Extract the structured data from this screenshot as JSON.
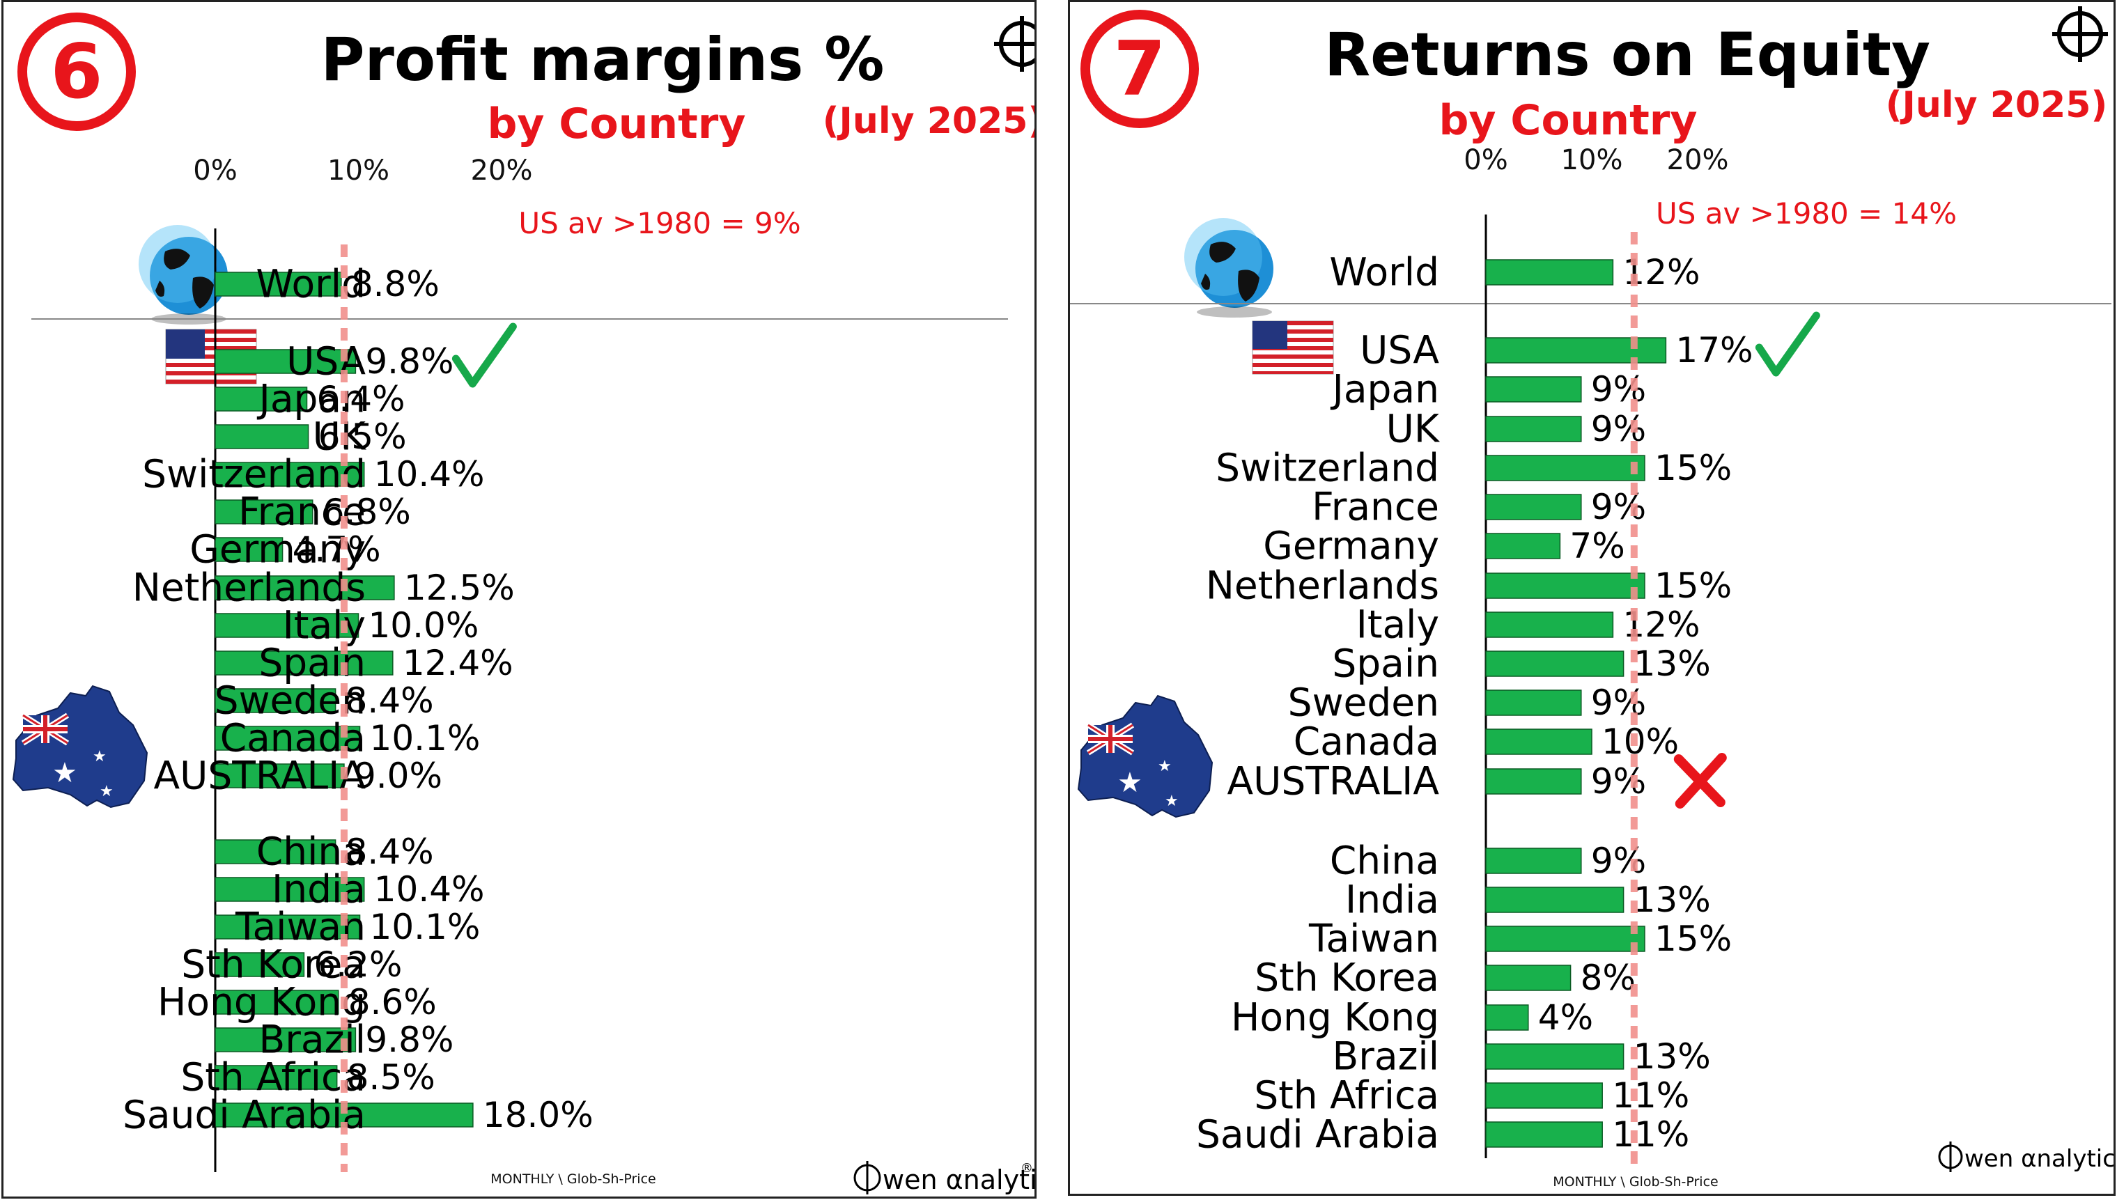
{
  "colors": {
    "bar": "#18b14c",
    "bar_stroke": "#0b5b24",
    "accent_red": "#e8151b",
    "refline": "#f1908c",
    "check": "#16a84a"
  },
  "panels": [
    {
      "badge_number": "6",
      "title": "Profit margins %",
      "subtitle": "by Country",
      "date": "(July 2025)",
      "refline_label": "US av >1980 = 9%",
      "footer_note": "MONTHLY \\ Glob-Sh-Price",
      "brand_name": "wen αnalytics",
      "brand_mark": "®",
      "chart_data": {
        "type": "bar",
        "orientation": "horizontal",
        "unit": "%",
        "xlim": [
          0,
          22
        ],
        "xticks": [
          "0%",
          "10%",
          "20%"
        ],
        "xtick_values": [
          0,
          10,
          20
        ],
        "reference_line": 9,
        "categories": [
          "World",
          "USA",
          "Japan",
          "UK",
          "Switzerland",
          "France",
          "Germany",
          "Netherlands",
          "Italy",
          "Spain",
          "Sweden",
          "Canada",
          "AUSTRALIA",
          "China",
          "India",
          "Taiwan",
          "Sth Korea",
          "Hong Kong",
          "Brazil",
          "Sth Africa",
          "Saudi Arabia"
        ],
        "values": [
          8.8,
          9.8,
          6.4,
          6.5,
          10.4,
          6.8,
          4.7,
          12.5,
          10.0,
          12.4,
          8.4,
          10.1,
          9.0,
          8.4,
          10.4,
          10.1,
          6.2,
          8.6,
          9.8,
          8.5,
          18.0
        ],
        "value_labels": [
          "8.8%",
          "9.8%",
          "6.4%",
          "6.5%",
          "10.4%",
          "6.8%",
          "4.7%",
          "12.5%",
          "10.0%",
          "12.4%",
          "8.4%",
          "10.1%",
          "9.0%",
          "8.4%",
          "10.4%",
          "10.1%",
          "6.2%",
          "8.6%",
          "9.8%",
          "8.5%",
          "18.0%"
        ],
        "marks": {
          "USA": "check"
        }
      }
    },
    {
      "badge_number": "7",
      "title": "Returns on Equity",
      "subtitle": "by Country",
      "date": "(July 2025)",
      "refline_label": "US av >1980 = 14%",
      "footer_note": "MONTHLY \\ Glob-Sh-Price",
      "brand_name": "wen αnalytics",
      "brand_mark": "",
      "chart_data": {
        "type": "bar",
        "orientation": "horizontal",
        "unit": "%",
        "xlim": [
          0,
          25
        ],
        "xticks": [
          "0%",
          "10%",
          "20%"
        ],
        "xtick_values": [
          0,
          10,
          20
        ],
        "reference_line": 14,
        "categories": [
          "World",
          "USA",
          "Japan",
          "UK",
          "Switzerland",
          "France",
          "Germany",
          "Netherlands",
          "Italy",
          "Spain",
          "Sweden",
          "Canada",
          "AUSTRALIA",
          "China",
          "India",
          "Taiwan",
          "Sth Korea",
          "Hong Kong",
          "Brazil",
          "Sth Africa",
          "Saudi Arabia"
        ],
        "values": [
          12,
          17,
          9,
          9,
          15,
          9,
          7,
          15,
          12,
          13,
          9,
          10,
          9,
          9,
          13,
          15,
          8,
          4,
          13,
          11,
          11
        ],
        "value_labels": [
          "12%",
          "17%",
          "9%",
          "9%",
          "15%",
          "9%",
          "7%",
          "15%",
          "12%",
          "13%",
          "9%",
          "10%",
          "9%",
          "9%",
          "13%",
          "15%",
          "8%",
          "4%",
          "13%",
          "11%",
          "11%"
        ],
        "marks": {
          "USA": "check",
          "AUSTRALIA": "cross"
        }
      }
    }
  ]
}
